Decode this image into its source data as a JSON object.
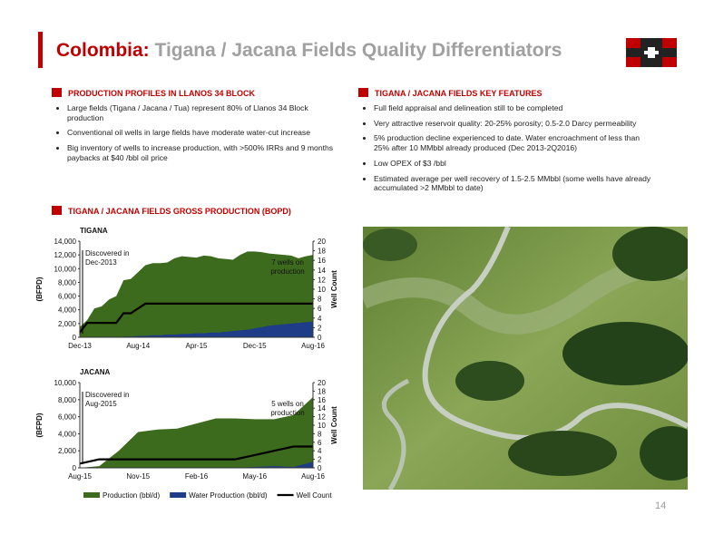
{
  "header": {
    "title_lead": "Colombia:",
    "title_rest": "Tigana / Jacana Fields Quality Differentiators"
  },
  "left": {
    "heading": "PRODUCTION PROFILES IN LLANOS 34 BLOCK",
    "bullets": [
      "Large fields (Tigana / Jacana / Tua) represent 80% of Llanos 34 Block production",
      "Conventional oil wells in large fields have moderate water-cut increase",
      "Big inventory of wells to increase production, with >500% IRRs and 9 months paybacks at $40 /bbl oil price"
    ]
  },
  "right": {
    "heading": "TIGANA / JACANA FIELDS KEY FEATURES",
    "bullets": [
      "Full field appraisal and delineation still to be completed",
      "Very attractive reservoir quality: 20-25% porosity; 0.5-2.0 Darcy permeability",
      "5% production decline experienced to date. Water encroachment of less than 25% after 10 MMbbl already produced (Dec 2013-2Q2016)",
      "Low OPEX of $3 /bbl",
      "Estimated average per well recovery of 1.5-2.5 MMbbl (some wells have already accumulated >2 MMbbl to date)"
    ]
  },
  "charts_heading": "TIGANA / JACANA FIELDS GROSS PRODUCTION (BOPD)",
  "page_number": "14",
  "chart_data": [
    {
      "type": "area",
      "subtitle": "TIGANA",
      "ylabel": "(BFPD)",
      "y2label": "Well Count",
      "categories": [
        "Dec-13",
        null,
        null,
        null,
        null,
        null,
        null,
        null,
        "Aug-14",
        null,
        null,
        null,
        null,
        null,
        null,
        null,
        "Apr-15",
        null,
        null,
        null,
        null,
        null,
        null,
        null,
        "Dec-15",
        null,
        null,
        null,
        null,
        null,
        null,
        null,
        "Aug-16"
      ],
      "series": [
        {
          "name": "Production (bbl/d)",
          "color": "#3d6b1e",
          "values": [
            1500,
            2500,
            4200,
            4500,
            5500,
            6000,
            8300,
            8500,
            9500,
            10500,
            10800,
            10800,
            10900,
            11500,
            11800,
            11700,
            11600,
            11900,
            11800,
            11500,
            11400,
            11300,
            12000,
            12500,
            12500,
            12400,
            12200,
            12100,
            12000,
            11900,
            11500,
            11800,
            12000
          ]
        },
        {
          "name": "Water Production (bbl/d)",
          "color": "#1f3c88",
          "values": [
            0,
            0,
            0,
            0,
            0,
            0,
            100,
            100,
            200,
            200,
            300,
            300,
            400,
            400,
            500,
            500,
            600,
            600,
            700,
            700,
            800,
            900,
            1000,
            1100,
            1300,
            1500,
            1700,
            1800,
            1900,
            2000,
            2100,
            2200,
            2300
          ]
        },
        {
          "name": "Well Count",
          "color": "#000000",
          "type": "line",
          "axis": "y2",
          "values": [
            1,
            3,
            3,
            3,
            3,
            3,
            5,
            5,
            6,
            7,
            7,
            7,
            7,
            7,
            7,
            7,
            7,
            7,
            7,
            7,
            7,
            7,
            7,
            7,
            7,
            7,
            7,
            7,
            7,
            7,
            7,
            7,
            7
          ]
        }
      ],
      "ylim": [
        0,
        14000
      ],
      "yticks": [
        0,
        {
          "value": 2000,
          "label": "2,000"
        },
        {
          "value": 4000,
          "label": "4,000"
        },
        {
          "value": 6000,
          "label": "6,000"
        },
        {
          "value": 8000,
          "label": "8,000"
        },
        {
          "value": 10000,
          "label": "10,000"
        },
        {
          "value": 12000,
          "label": "12,000"
        },
        {
          "value": 14000,
          "label": "14,000"
        }
      ],
      "y2lim": [
        0,
        20
      ],
      "y2ticks": [
        0,
        2,
        4,
        6,
        8,
        10,
        12,
        14,
        16,
        18,
        20
      ],
      "annotations": [
        {
          "lines": [
            "Discovered in",
            "Dec-2013"
          ]
        },
        {
          "lines": [
            "7 wells on",
            "production"
          ]
        }
      ]
    },
    {
      "type": "area",
      "subtitle": "JACANA",
      "ylabel": "(BFPD)",
      "y2label": "Well Count",
      "categories": [
        "Aug-15",
        null,
        null,
        "Nov-15",
        null,
        null,
        "Feb-16",
        null,
        null,
        "May-16",
        null,
        null,
        "Aug-16"
      ],
      "series": [
        {
          "color": "#3d6b1e",
          "values": [
            0,
            200,
            2000,
            4200,
            4500,
            4600,
            5200,
            5800,
            5800,
            5700,
            5700,
            6200,
            8300
          ]
        },
        {
          "color": "#1f3c88",
          "values": [
            0,
            0,
            0,
            0,
            0,
            0,
            0,
            0,
            0,
            100,
            200,
            100,
            700
          ]
        },
        {
          "color": "#000000",
          "type": "line",
          "axis": "y2",
          "values": [
            1,
            2,
            2,
            2,
            2,
            2,
            2,
            2,
            2,
            3,
            4,
            5,
            5
          ]
        }
      ],
      "ylim": [
        0,
        10000
      ],
      "yticks": [
        0,
        {
          "value": 2000,
          "label": "2,000"
        },
        {
          "value": 4000,
          "label": "4,000"
        },
        {
          "value": 6000,
          "label": "6,000"
        },
        {
          "value": 8000,
          "label": "8,000"
        },
        {
          "value": 10000,
          "label": "10,000"
        }
      ],
      "y2lim": [
        0,
        20
      ],
      "y2ticks": [
        0,
        2,
        4,
        6,
        8,
        10,
        12,
        14,
        16,
        18,
        20
      ],
      "annotations": [
        {
          "lines": [
            "Discovered in",
            "Aug-2015"
          ]
        },
        {
          "lines": [
            "5 wells on",
            "production"
          ]
        }
      ]
    }
  ]
}
